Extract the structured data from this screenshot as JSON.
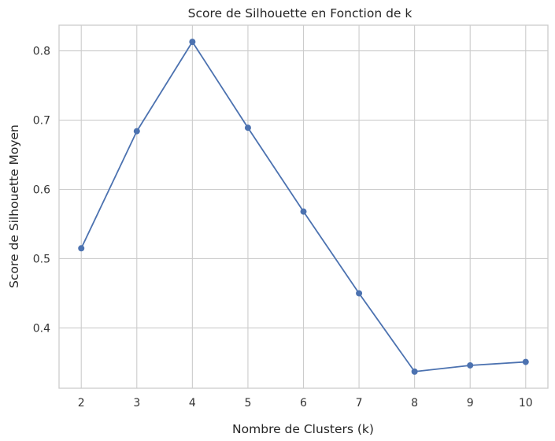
{
  "chart_data": {
    "type": "line",
    "title": "Score de Silhouette en Fonction de k",
    "xlabel": "Nombre de Clusters (k)",
    "ylabel": "Score de Silhouette Moyen",
    "x": [
      2,
      3,
      4,
      5,
      6,
      7,
      8,
      9,
      10
    ],
    "series": [
      {
        "values": [
          0.515,
          0.684,
          0.813,
          0.689,
          0.568,
          0.45,
          0.337,
          0.346,
          0.351
        ],
        "color": "#4c72b0",
        "marker": "circle"
      }
    ],
    "x_ticks": [
      "2",
      "3",
      "4",
      "5",
      "6",
      "7",
      "8",
      "9",
      "10"
    ],
    "y_ticks": [
      "0.4",
      "0.5",
      "0.6",
      "0.7",
      "0.8"
    ],
    "y_tick_values": [
      0.4,
      0.5,
      0.6,
      0.7,
      0.8
    ],
    "xlim": [
      1.6,
      10.4
    ],
    "ylim": [
      0.313,
      0.837
    ],
    "grid": true,
    "legend": "none"
  }
}
